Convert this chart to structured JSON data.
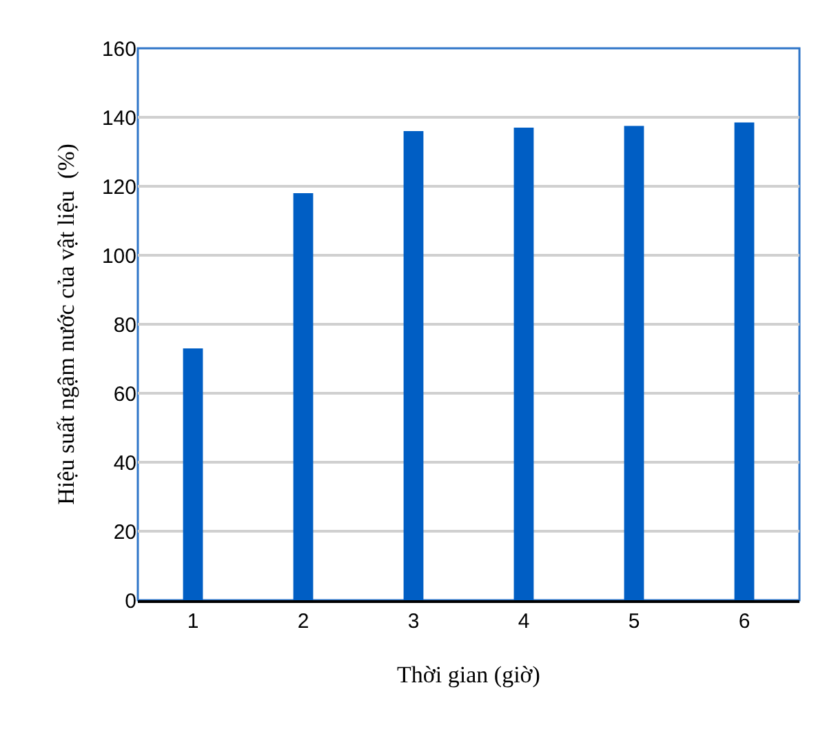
{
  "chart_data": {
    "type": "bar",
    "xlabel": "Thời gian (giờ)",
    "ylabel": "Hiệu suất ngậm nước của vật liệu  (%)",
    "categories": [
      "1",
      "2",
      "3",
      "4",
      "5",
      "6"
    ],
    "values": [
      73,
      118,
      136,
      137,
      137.5,
      138.5
    ],
    "color": "#005ec4",
    "ylim": [
      0,
      160
    ],
    "yticks": [
      0,
      20,
      40,
      60,
      80,
      100,
      120,
      140,
      160
    ],
    "grid": "y"
  }
}
